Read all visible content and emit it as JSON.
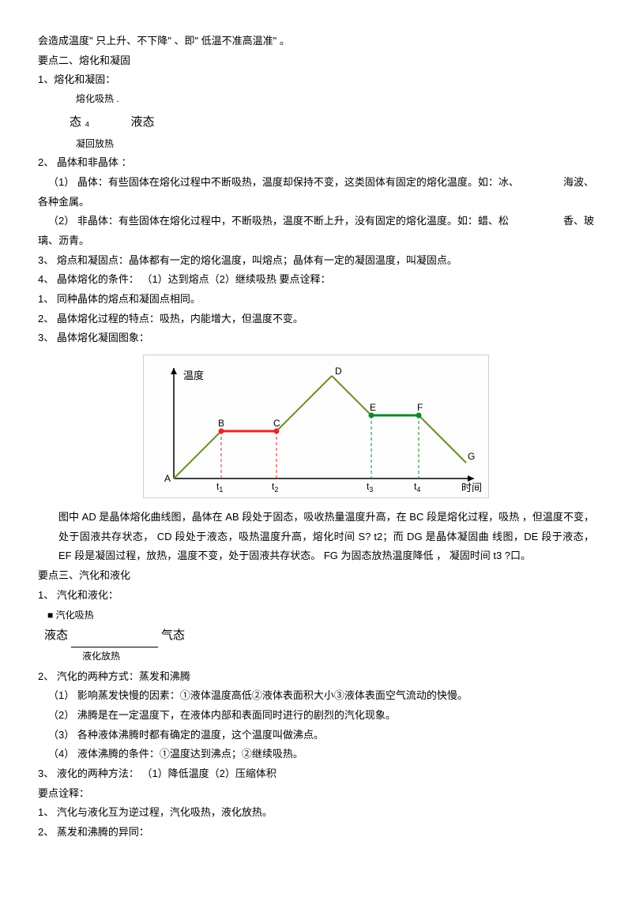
{
  "para_intro": "会造成温度\" 只上升、不下降\" 、即\" 低温不准高温准\" 。",
  "section2_title": "要点二、熔化和凝固",
  "s2_1": "1、熔化和凝固：",
  "s2_top_label": "熔化吸热 .",
  "s2_state_left": "态 ₄",
  "s2_state_right": "液态",
  "s2_bottom_label": "凝回放热",
  "s2_2": "2、 晶体和非晶体 ：",
  "s2_2_1a": "（1） 晶体：有些固体在熔化过程中不断吸热，温度却保持不变，这类固体有固定的熔化温度。如：冰、",
  "s2_2_1b": "海波、",
  "s2_2_1c": "各种金属。",
  "s2_2_2a": "（2） 非晶体：有些固体在熔化过程中，不断吸热，温度不断上升，没有固定的熔化温度。如：蜡、松",
  "s2_2_2b": "香、玻",
  "s2_2_2c": "璃、沥青。",
  "s2_3": "3、 熔点和凝固点：晶体都有一定的熔化温度，叫熔点；晶体有一定的凝固温度，叫凝固点。",
  "s2_4": "4、 晶体熔化的条件： （1）达到熔点（2）继续吸热  要点诠释：",
  "s2_p1": "1、 同种晶体的熔点和凝固点相同。",
  "s2_p2": "2、 晶体熔化过程的特点：吸热，内能增大，但温度不变。",
  "s2_p3": "3、 晶体熔化凝固图象：",
  "chart": {
    "y_label": "温度",
    "x_label": "时间",
    "ticks": [
      "t₁",
      "t₂",
      "t₃",
      "t₄"
    ],
    "points": {
      "A": "A",
      "B": "B",
      "C": "C",
      "D": "D",
      "E": "E",
      "F": "F",
      "G": "G"
    },
    "axis_color": "#000000",
    "slope_color": "#6b8e23",
    "melt_color": "#e8252b",
    "solid_color": "#0a8a2a",
    "dash_color": "#e8252b",
    "bg": "#fdfdfd"
  },
  "chart_desc": "图中 AD 是晶体熔化曲线图，晶体在   AB 段处于固态，吸收热量温度升高，在   BC 段是熔化过程，吸热 ，但温度不变，处于固液共存状态， CD 段处于液态，吸热温度升高，熔化时间  S? t2；而 DG 是晶体凝固曲  线图，DE 段于液态， EF 段是凝固过程，放热，温度不变，处于固液共存状态。  FG 为固态放热温度降低 ， 凝固时间  t3 ?口。",
  "section3_title": "要点三、汽化和液化",
  "s3_1": "1、 汽化和液化：",
  "s3_vap_top": "■ 汽化吸热",
  "s3_vap_left": "液态",
  "s3_vap_right": "气态",
  "s3_vap_bottom": "液化放热",
  "s3_2": "2、 汽化的两种方式：蒸发和沸腾",
  "s3_2_1": "（1） 影响蒸发快慢的因素：①液体温度高低②液体表面积大小③液体表面空气流动的快慢。",
  "s3_2_2": "（2） 沸腾是在一定温度下，在液体内部和表面同时进行的剧烈的汽化现象。",
  "s3_2_3": "（3） 各种液体沸腾时都有确定的温度，这个温度叫做沸点。",
  "s3_2_4": "（4） 液体沸腾的条件：①温度达到沸点；②继续吸热。",
  "s3_3": "3、 液化的两种方法： （1）降低温度（2）压缩体积",
  "s3_note_title": "要点诠释：",
  "s3_p1": "1、 汽化与液化互为逆过程，汽化吸热，液化放热。",
  "s3_p2": "2、 蒸发和沸腾的异同："
}
